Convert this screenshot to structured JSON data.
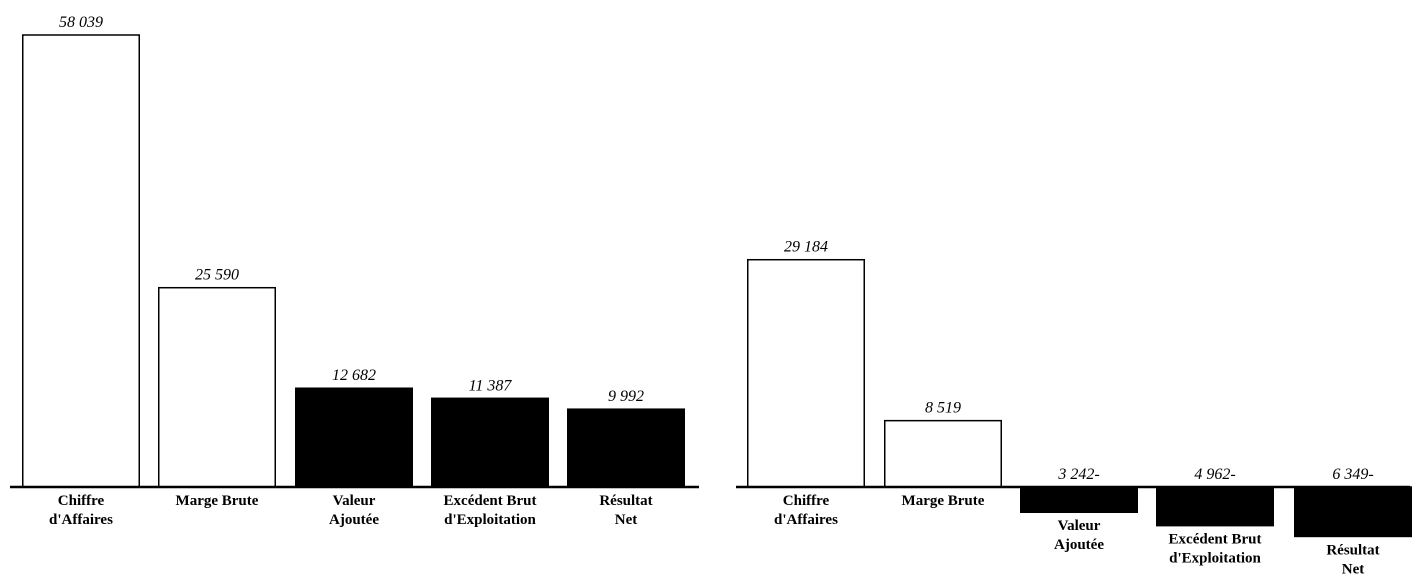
{
  "chart_data": [
    {
      "type": "bar",
      "categories": [
        [
          "Chiffre",
          "d'Affaires"
        ],
        [
          "Marge Brute"
        ],
        [
          "Valeur",
          "Ajoutée"
        ],
        [
          "Excédent Brut",
          "d'Exploitation"
        ],
        [
          "Résultat",
          "Net"
        ]
      ],
      "values": [
        58039,
        25590,
        12682,
        11387,
        9992
      ],
      "value_labels": [
        "58 039",
        "25 590",
        "12 682",
        "11 387",
        "9 992"
      ],
      "bar_fill": [
        "#ffffff",
        "#ffffff",
        "#000000",
        "#000000",
        "#000000"
      ],
      "ylim": [
        0,
        58039
      ],
      "grid": false,
      "legend": "none",
      "title": "",
      "xlabel": "",
      "ylabel": ""
    },
    {
      "type": "bar",
      "categories": [
        [
          "Chiffre",
          "d'Affaires"
        ],
        [
          "Marge Brute"
        ],
        [
          "Valeur",
          "Ajoutée"
        ],
        [
          "Excédent Brut",
          "d'Exploitation"
        ],
        [
          "Résultat",
          "Net"
        ]
      ],
      "values": [
        29184,
        8519,
        -3242,
        -4962,
        -6349
      ],
      "value_labels": [
        "29 184",
        "8 519",
        "3 242-",
        "4 962-",
        "6 349-"
      ],
      "bar_fill": [
        "#ffffff",
        "#ffffff",
        "#000000",
        "#000000",
        "#000000"
      ],
      "ylim": [
        -6349,
        58039
      ],
      "grid": false,
      "legend": "none",
      "title": "",
      "xlabel": "",
      "ylabel": ""
    }
  ]
}
